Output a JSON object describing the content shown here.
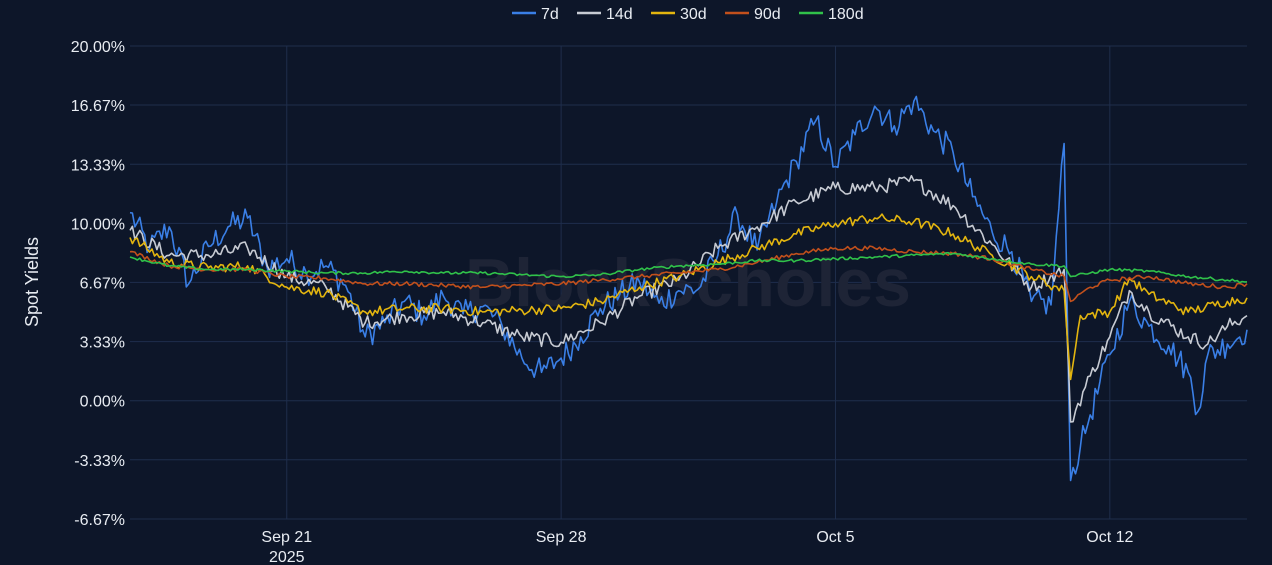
{
  "colors": {
    "background": "#0d1629",
    "grid": "#1f2e4c",
    "text": "#e8ecf2",
    "watermark": "#1e2436",
    "series_7d": "#3a7fe6",
    "series_14d": "#c7cbd3",
    "series_30d": "#e3b50f",
    "series_90d": "#c2501c",
    "series_180d": "#30c24a"
  },
  "watermark_text": "BlockScholes",
  "chart_data": {
    "type": "line",
    "title": "",
    "ylabel": "Spot Yields",
    "xlabel": "",
    "ylim": [
      -6.67,
      20.0
    ],
    "y_ticks": [
      20.0,
      16.67,
      13.33,
      10.0,
      6.67,
      3.33,
      0.0,
      -3.33,
      -6.67
    ],
    "y_tick_labels": [
      "20.00%",
      "16.67%",
      "13.33%",
      "10.00%",
      "6.67%",
      "3.33%",
      "0.00%",
      "-3.33%",
      "-6.67%"
    ],
    "x_range": [
      "2025-09-17",
      "2025-10-15T12:00"
    ],
    "x_ticks": [
      "2025-09-21",
      "2025-09-28",
      "2025-10-05",
      "2025-10-12"
    ],
    "x_tick_labels": [
      "Sep 21",
      "Sep 28",
      "Oct 5",
      "Oct 12"
    ],
    "x_tick_sublabels": [
      "2025",
      "",
      "",
      ""
    ],
    "legend_position": "top-center",
    "grid": true,
    "series": [
      {
        "name": "7d",
        "color": "#3a7fe6",
        "noise": 0.75,
        "points": [
          [
            "2025-09-17",
            10.6
          ],
          [
            "2025-09-17T12:00",
            8.6
          ],
          [
            "2025-09-18",
            9.8
          ],
          [
            "2025-09-18T12:00",
            6.6
          ],
          [
            "2025-09-19",
            8.7
          ],
          [
            "2025-09-19T12:00",
            9.8
          ],
          [
            "2025-09-20",
            10.3
          ],
          [
            "2025-09-20T12:00",
            7.5
          ],
          [
            "2025-09-21",
            8.0
          ],
          [
            "2025-09-21T12:00",
            7.2
          ],
          [
            "2025-09-22",
            7.6
          ],
          [
            "2025-09-22T12:00",
            6.5
          ],
          [
            "2025-09-23",
            3.6
          ],
          [
            "2025-09-23T12:00",
            4.4
          ],
          [
            "2025-09-24",
            5.6
          ],
          [
            "2025-09-24T12:00",
            4.8
          ],
          [
            "2025-09-25",
            5.9
          ],
          [
            "2025-09-25T12:00",
            4.9
          ],
          [
            "2025-09-26",
            5.3
          ],
          [
            "2025-09-26T12:00",
            4.2
          ],
          [
            "2025-09-27",
            2.4
          ],
          [
            "2025-09-27T12:00",
            1.6
          ],
          [
            "2025-09-28",
            2.4
          ],
          [
            "2025-09-28T12:00",
            3.6
          ],
          [
            "2025-09-29",
            5.2
          ],
          [
            "2025-09-29T12:00",
            6.0
          ],
          [
            "2025-09-30",
            6.7
          ],
          [
            "2025-09-30T12:00",
            5.5
          ],
          [
            "2025-10-01",
            6.2
          ],
          [
            "2025-10-01T12:00",
            6.3
          ],
          [
            "2025-10-02",
            8.2
          ],
          [
            "2025-10-02T12:00",
            10.5
          ],
          [
            "2025-10-03",
            8.5
          ],
          [
            "2025-10-03T12:00",
            11.2
          ],
          [
            "2025-10-04",
            13.5
          ],
          [
            "2025-10-04T12:00",
            15.8
          ],
          [
            "2025-10-05",
            13.2
          ],
          [
            "2025-10-05T12:00",
            15.0
          ],
          [
            "2025-10-06",
            16.6
          ],
          [
            "2025-10-06T12:00",
            15.5
          ],
          [
            "2025-10-07",
            16.9
          ],
          [
            "2025-10-07T12:00",
            15.2
          ],
          [
            "2025-10-08",
            14.0
          ],
          [
            "2025-10-08T12:00",
            11.5
          ],
          [
            "2025-10-09",
            9.5
          ],
          [
            "2025-10-09T12:00",
            8.4
          ],
          [
            "2025-10-10",
            5.6
          ],
          [
            "2025-10-10T12:00",
            5.4
          ],
          [
            "2025-10-10T20:00",
            14.5
          ],
          [
            "2025-10-11",
            -4.5
          ],
          [
            "2025-10-11T06:00",
            -2.6
          ],
          [
            "2025-10-11T12:00",
            -0.8
          ],
          [
            "2025-10-12",
            2.6
          ],
          [
            "2025-10-12T12:00",
            5.6
          ],
          [
            "2025-10-13",
            4.2
          ],
          [
            "2025-10-13T12:00",
            3.1
          ],
          [
            "2025-10-14",
            1.6
          ],
          [
            "2025-10-14T06:00",
            -0.6
          ],
          [
            "2025-10-14T12:00",
            2.6
          ],
          [
            "2025-10-15",
            3.2
          ],
          [
            "2025-10-15T12:00",
            4.0
          ]
        ]
      },
      {
        "name": "14d",
        "color": "#c7cbd3",
        "noise": 0.4,
        "points": [
          [
            "2025-09-17",
            9.6
          ],
          [
            "2025-09-18",
            8.2
          ],
          [
            "2025-09-19",
            8.2
          ],
          [
            "2025-09-20",
            8.6
          ],
          [
            "2025-09-21",
            7.0
          ],
          [
            "2025-09-22",
            6.4
          ],
          [
            "2025-09-23",
            4.4
          ],
          [
            "2025-09-24",
            4.8
          ],
          [
            "2025-09-25",
            5.0
          ],
          [
            "2025-09-26",
            4.4
          ],
          [
            "2025-09-27",
            3.6
          ],
          [
            "2025-09-28",
            3.3
          ],
          [
            "2025-09-29",
            4.4
          ],
          [
            "2025-09-30",
            5.9
          ],
          [
            "2025-10-01",
            6.8
          ],
          [
            "2025-10-02",
            8.6
          ],
          [
            "2025-10-03",
            9.8
          ],
          [
            "2025-10-04",
            11.2
          ],
          [
            "2025-10-05",
            12.0
          ],
          [
            "2025-10-06",
            12.0
          ],
          [
            "2025-10-07",
            12.4
          ],
          [
            "2025-10-08",
            11.0
          ],
          [
            "2025-10-09",
            8.8
          ],
          [
            "2025-10-10",
            6.4
          ],
          [
            "2025-10-10T20:00",
            7.4
          ],
          [
            "2025-10-11",
            -1.2
          ],
          [
            "2025-10-11T12:00",
            1.4
          ],
          [
            "2025-10-12",
            3.6
          ],
          [
            "2025-10-12T12:00",
            6.2
          ],
          [
            "2025-10-13",
            5.0
          ],
          [
            "2025-10-14",
            3.6
          ],
          [
            "2025-10-14T12:00",
            3.2
          ],
          [
            "2025-10-15",
            4.2
          ],
          [
            "2025-10-15T12:00",
            4.8
          ]
        ]
      },
      {
        "name": "30d",
        "color": "#e3b50f",
        "noise": 0.28,
        "points": [
          [
            "2025-09-17",
            9.2
          ],
          [
            "2025-09-18",
            7.8
          ],
          [
            "2025-09-19",
            7.5
          ],
          [
            "2025-09-20",
            7.6
          ],
          [
            "2025-09-21",
            6.4
          ],
          [
            "2025-09-22",
            6.1
          ],
          [
            "2025-09-23",
            5.0
          ],
          [
            "2025-09-24",
            5.2
          ],
          [
            "2025-09-25",
            5.2
          ],
          [
            "2025-09-26",
            5.0
          ],
          [
            "2025-09-27",
            5.1
          ],
          [
            "2025-09-28",
            5.2
          ],
          [
            "2025-09-29",
            5.6
          ],
          [
            "2025-09-30",
            6.4
          ],
          [
            "2025-10-01",
            7.0
          ],
          [
            "2025-10-02",
            7.8
          ],
          [
            "2025-10-03",
            8.6
          ],
          [
            "2025-10-04",
            9.4
          ],
          [
            "2025-10-05",
            10.0
          ],
          [
            "2025-10-06",
            10.3
          ],
          [
            "2025-10-07",
            10.1
          ],
          [
            "2025-10-08",
            9.4
          ],
          [
            "2025-10-09",
            8.2
          ],
          [
            "2025-10-10",
            7.0
          ],
          [
            "2025-10-10T20:00",
            6.2
          ],
          [
            "2025-10-11",
            1.2
          ],
          [
            "2025-10-11T06:00",
            4.8
          ],
          [
            "2025-10-12",
            5.0
          ],
          [
            "2025-10-12T12:00",
            6.9
          ],
          [
            "2025-10-13",
            6.0
          ],
          [
            "2025-10-14",
            5.0
          ],
          [
            "2025-10-15",
            5.6
          ],
          [
            "2025-10-15T12:00",
            5.8
          ]
        ]
      },
      {
        "name": "90d",
        "color": "#c2501c",
        "noise": 0.12,
        "points": [
          [
            "2025-09-17",
            8.4
          ],
          [
            "2025-09-18",
            7.6
          ],
          [
            "2025-09-19",
            7.4
          ],
          [
            "2025-09-20",
            7.4
          ],
          [
            "2025-09-21",
            7.0
          ],
          [
            "2025-09-22",
            6.9
          ],
          [
            "2025-09-23",
            6.6
          ],
          [
            "2025-09-24",
            6.6
          ],
          [
            "2025-09-25",
            6.5
          ],
          [
            "2025-09-26",
            6.4
          ],
          [
            "2025-09-27",
            6.5
          ],
          [
            "2025-09-28",
            6.6
          ],
          [
            "2025-09-29",
            6.8
          ],
          [
            "2025-09-30",
            7.0
          ],
          [
            "2025-10-01",
            7.2
          ],
          [
            "2025-10-02",
            7.4
          ],
          [
            "2025-10-03",
            7.8
          ],
          [
            "2025-10-04",
            8.3
          ],
          [
            "2025-10-05",
            8.6
          ],
          [
            "2025-10-06",
            8.6
          ],
          [
            "2025-10-07",
            8.4
          ],
          [
            "2025-10-08",
            8.3
          ],
          [
            "2025-10-09",
            8.0
          ],
          [
            "2025-10-10",
            7.4
          ],
          [
            "2025-10-10T20:00",
            7.0
          ],
          [
            "2025-10-11",
            5.6
          ],
          [
            "2025-10-11T12:00",
            6.4
          ],
          [
            "2025-10-12",
            6.8
          ],
          [
            "2025-10-13",
            7.0
          ],
          [
            "2025-10-14",
            6.6
          ],
          [
            "2025-10-15",
            6.4
          ],
          [
            "2025-10-15T12:00",
            6.6
          ]
        ]
      },
      {
        "name": "180d",
        "color": "#30c24a",
        "noise": 0.08,
        "points": [
          [
            "2025-09-17",
            8.1
          ],
          [
            "2025-09-18",
            7.6
          ],
          [
            "2025-09-19",
            7.4
          ],
          [
            "2025-09-20",
            7.4
          ],
          [
            "2025-09-21",
            7.3
          ],
          [
            "2025-09-22",
            7.2
          ],
          [
            "2025-09-23",
            7.2
          ],
          [
            "2025-09-24",
            7.3
          ],
          [
            "2025-09-25",
            7.2
          ],
          [
            "2025-09-26",
            7.2
          ],
          [
            "2025-09-27",
            7.1
          ],
          [
            "2025-09-28",
            7.0
          ],
          [
            "2025-09-29",
            7.1
          ],
          [
            "2025-09-30",
            7.4
          ],
          [
            "2025-10-01",
            7.6
          ],
          [
            "2025-10-02",
            7.7
          ],
          [
            "2025-10-03",
            7.9
          ],
          [
            "2025-10-04",
            7.9
          ],
          [
            "2025-10-05",
            8.0
          ],
          [
            "2025-10-06",
            8.1
          ],
          [
            "2025-10-07",
            8.2
          ],
          [
            "2025-10-08",
            8.3
          ],
          [
            "2025-10-09",
            8.0
          ],
          [
            "2025-10-10",
            7.7
          ],
          [
            "2025-10-10T20:00",
            7.6
          ],
          [
            "2025-10-11",
            7.0
          ],
          [
            "2025-10-11T12:00",
            7.2
          ],
          [
            "2025-10-12",
            7.4
          ],
          [
            "2025-10-13",
            7.3
          ],
          [
            "2025-10-14",
            7.0
          ],
          [
            "2025-10-15",
            6.8
          ],
          [
            "2025-10-15T12:00",
            6.7
          ]
        ]
      }
    ]
  }
}
